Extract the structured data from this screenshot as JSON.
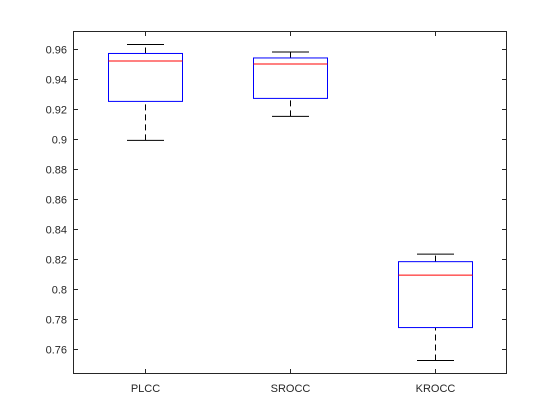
{
  "chart_data": {
    "type": "box",
    "title": "",
    "xlabel": "",
    "ylabel": "",
    "ylim": [
      0.743,
      0.972
    ],
    "y_ticks": [
      "0.76",
      "0.78",
      "0.8",
      "0.82",
      "0.84",
      "0.86",
      "0.88",
      "0.9",
      "0.92",
      "0.94",
      "0.96"
    ],
    "categories": [
      "PLCC",
      "SROCC",
      "KROCC"
    ],
    "boxes": [
      {
        "name": "PLCC",
        "min": 0.899,
        "q1": 0.925,
        "median": 0.952,
        "q3": 0.957,
        "max": 0.963
      },
      {
        "name": "SROCC",
        "min": 0.915,
        "q1": 0.927,
        "median": 0.95,
        "q3": 0.954,
        "max": 0.958
      },
      {
        "name": "KROCC",
        "min": 0.752,
        "q1": 0.774,
        "median": 0.809,
        "q3": 0.818,
        "max": 0.823
      }
    ],
    "grid": false,
    "legend": "none",
    "colors": {
      "box": "#0000ff",
      "median": "#ff0000",
      "whisker": "#000000",
      "axis": "#262626"
    }
  }
}
